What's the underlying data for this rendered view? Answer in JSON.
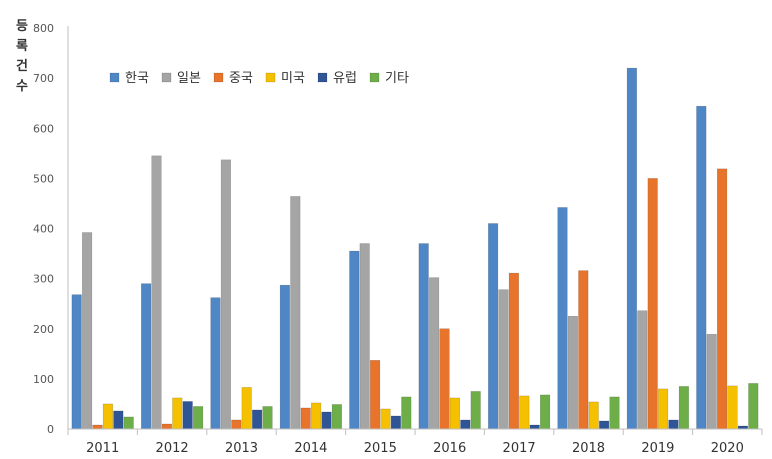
{
  "chart_data": {
    "type": "bar",
    "ylabel": "등록건수",
    "ylim": [
      0,
      800
    ],
    "yticks": [
      0,
      100,
      200,
      300,
      400,
      500,
      600,
      700,
      800
    ],
    "grid": false,
    "legend_position": "top-left",
    "categories": [
      "2011",
      "2012",
      "2013",
      "2014",
      "2015",
      "2016",
      "2017",
      "2018",
      "2019",
      "2020"
    ],
    "series": [
      {
        "name": "한국",
        "color": "#4F86C6",
        "values": [
          268,
          290,
          262,
          287,
          355,
          370,
          410,
          442,
          720,
          644
        ]
      },
      {
        "name": "일본",
        "color": "#A5A5A5",
        "values": [
          392,
          545,
          537,
          464,
          370,
          302,
          278,
          225,
          236,
          189
        ]
      },
      {
        "name": "중국",
        "color": "#E8732A",
        "values": [
          8,
          10,
          18,
          42,
          137,
          200,
          311,
          316,
          500,
          519
        ]
      },
      {
        "name": "미국",
        "color": "#F5C000",
        "values": [
          50,
          62,
          83,
          52,
          40,
          62,
          66,
          54,
          80,
          86
        ]
      },
      {
        "name": "유럽",
        "color": "#2F5597",
        "values": [
          36,
          55,
          38,
          34,
          26,
          18,
          8,
          16,
          18,
          6
        ]
      },
      {
        "name": "기타",
        "color": "#6DAE48",
        "values": [
          24,
          45,
          45,
          49,
          64,
          75,
          68,
          64,
          85,
          91
        ]
      }
    ]
  }
}
